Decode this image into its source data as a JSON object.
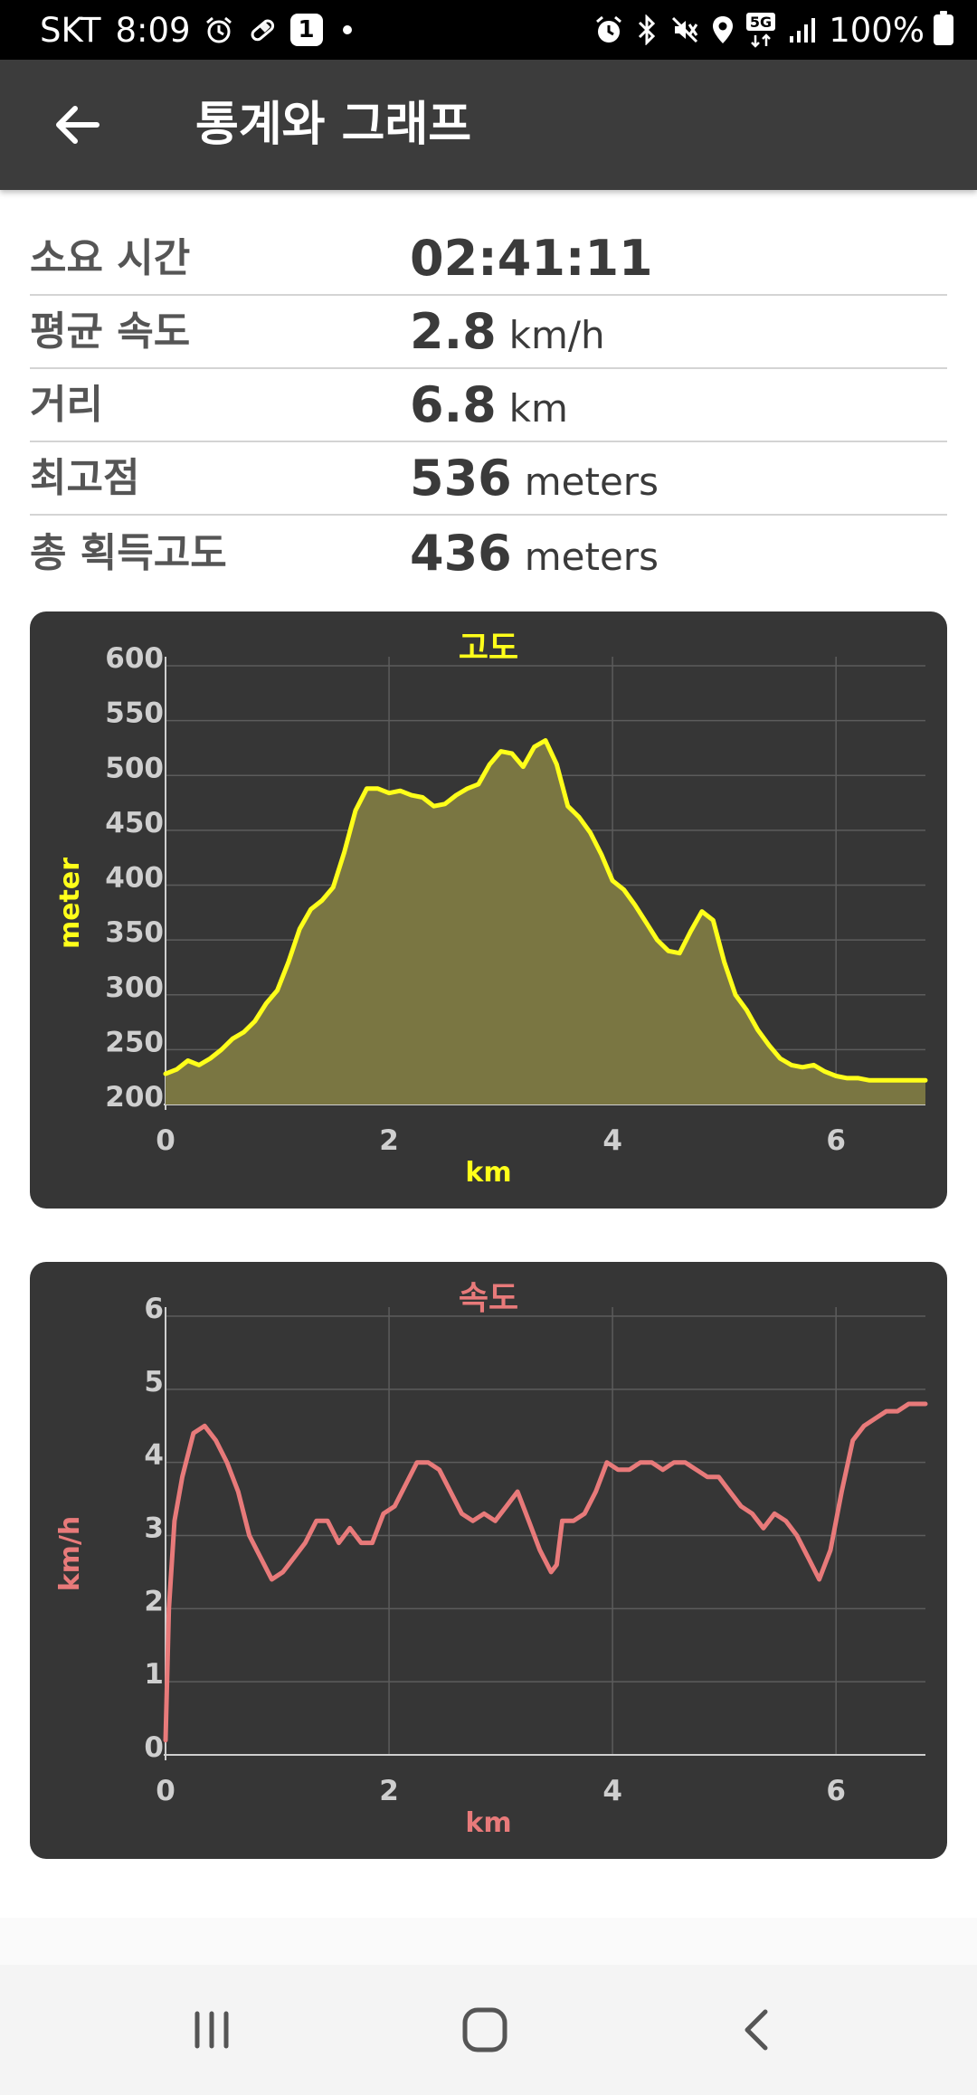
{
  "status_bar": {
    "carrier": "SKT",
    "time": "8:09",
    "notification_count": "1",
    "network": "5G",
    "battery": "100%",
    "left_icons": [
      "alarm-clock-icon",
      "pill-icon",
      "notification-badge",
      "dot-icon"
    ],
    "right_icons": [
      "alarm-icon",
      "bluetooth-icon",
      "vibrate-mute-icon",
      "location-icon",
      "5g-icon",
      "signal-icon",
      "battery-icon"
    ]
  },
  "app_bar": {
    "title": "통계와 그래프",
    "back_icon": "arrow-left-icon"
  },
  "stats": [
    {
      "label": "소요 시간",
      "value": "02:41:11",
      "unit": ""
    },
    {
      "label": "평균 속도",
      "value": "2.8",
      "unit": "km/h"
    },
    {
      "label": "거리",
      "value": "6.8",
      "unit": "km"
    },
    {
      "label": "최고점",
      "value": "536",
      "unit": "meters"
    },
    {
      "label": "총 획득고도",
      "value": "436",
      "unit": "meters"
    }
  ],
  "chart_data": [
    {
      "type": "area",
      "title": "고도",
      "xlabel": "km",
      "ylabel": "meter",
      "xlim": [
        0,
        6.8
      ],
      "ylim": [
        200,
        600
      ],
      "xticks": [
        0,
        2,
        4,
        6
      ],
      "yticks": [
        200,
        250,
        300,
        350,
        400,
        450,
        500,
        550,
        600
      ],
      "grid": true,
      "colors": {
        "line": "#ffff1a",
        "fill": "#7a7642",
        "background": "#363636",
        "grid": "#5c5c5c",
        "axis_text": "#cfcfcf"
      },
      "series": [
        {
          "x": [
            0,
            0.1,
            0.2,
            0.3,
            0.4,
            0.5,
            0.6,
            0.7,
            0.8,
            0.9,
            1.0,
            1.1,
            1.2,
            1.3,
            1.4,
            1.5,
            1.6,
            1.7,
            1.8,
            1.9,
            2.0,
            2.1,
            2.2,
            2.3,
            2.4,
            2.5,
            2.6,
            2.7,
            2.8,
            2.9,
            3.0,
            3.1,
            3.2,
            3.3,
            3.4,
            3.5,
            3.6,
            3.7,
            3.8,
            3.9,
            4.0,
            4.1,
            4.2,
            4.3,
            4.4,
            4.5,
            4.6,
            4.7,
            4.8,
            4.9,
            5.0,
            5.1,
            5.2,
            5.3,
            5.4,
            5.5,
            5.6,
            5.7,
            5.8,
            5.9,
            6.0,
            6.1,
            6.2,
            6.3,
            6.4,
            6.5,
            6.6,
            6.7,
            6.8
          ],
          "y": [
            228,
            232,
            240,
            236,
            242,
            250,
            260,
            266,
            276,
            292,
            304,
            330,
            360,
            378,
            386,
            398,
            430,
            468,
            488,
            488,
            484,
            486,
            482,
            480,
            472,
            474,
            482,
            488,
            492,
            510,
            522,
            520,
            508,
            526,
            532,
            510,
            472,
            462,
            448,
            428,
            404,
            396,
            382,
            366,
            350,
            340,
            338,
            358,
            376,
            368,
            330,
            300,
            286,
            268,
            254,
            242,
            236,
            234,
            236,
            230,
            226,
            224,
            224,
            222,
            222,
            222,
            222,
            222,
            222
          ]
        }
      ]
    },
    {
      "type": "line",
      "title": "속도",
      "xlabel": "km",
      "ylabel": "km/h",
      "xlim": [
        0,
        6.8
      ],
      "ylim": [
        0,
        6
      ],
      "xticks": [
        0,
        2,
        4,
        6
      ],
      "yticks": [
        0,
        1,
        2,
        3,
        4,
        5,
        6
      ],
      "grid": true,
      "colors": {
        "line": "#e87a7a",
        "background": "#363636",
        "grid": "#5c5c5c",
        "axis_text": "#cfcfcf"
      },
      "series": [
        {
          "x": [
            0,
            0.03,
            0.08,
            0.15,
            0.25,
            0.35,
            0.45,
            0.55,
            0.65,
            0.75,
            0.85,
            0.95,
            1.05,
            1.15,
            1.25,
            1.35,
            1.45,
            1.55,
            1.65,
            1.75,
            1.85,
            1.95,
            2.05,
            2.15,
            2.25,
            2.35,
            2.45,
            2.55,
            2.65,
            2.75,
            2.85,
            2.95,
            3.05,
            3.15,
            3.25,
            3.35,
            3.45,
            3.5,
            3.55,
            3.65,
            3.75,
            3.85,
            3.95,
            4.05,
            4.15,
            4.25,
            4.35,
            4.45,
            4.55,
            4.65,
            4.75,
            4.85,
            4.95,
            5.05,
            5.15,
            5.25,
            5.35,
            5.45,
            5.55,
            5.65,
            5.75,
            5.85,
            5.95,
            6.05,
            6.15,
            6.25,
            6.35,
            6.45,
            6.55,
            6.65,
            6.8
          ],
          "y": [
            0.2,
            2.0,
            3.2,
            3.8,
            4.4,
            4.5,
            4.3,
            4.0,
            3.6,
            3.0,
            2.7,
            2.4,
            2.5,
            2.7,
            2.9,
            3.2,
            3.2,
            2.9,
            3.1,
            2.9,
            2.9,
            3.3,
            3.4,
            3.7,
            4.0,
            4.0,
            3.9,
            3.6,
            3.3,
            3.2,
            3.3,
            3.2,
            3.4,
            3.6,
            3.2,
            2.8,
            2.5,
            2.6,
            3.2,
            3.2,
            3.3,
            3.6,
            4.0,
            3.9,
            3.9,
            4.0,
            4.0,
            3.9,
            4.0,
            4.0,
            3.9,
            3.8,
            3.8,
            3.6,
            3.4,
            3.3,
            3.1,
            3.3,
            3.2,
            3.0,
            2.7,
            2.4,
            2.8,
            3.6,
            4.3,
            4.5,
            4.6,
            4.7,
            4.7,
            4.8,
            4.8
          ]
        }
      ]
    }
  ],
  "nav_bar": {
    "icons": [
      "recent-apps-icon",
      "home-icon",
      "back-icon"
    ]
  }
}
